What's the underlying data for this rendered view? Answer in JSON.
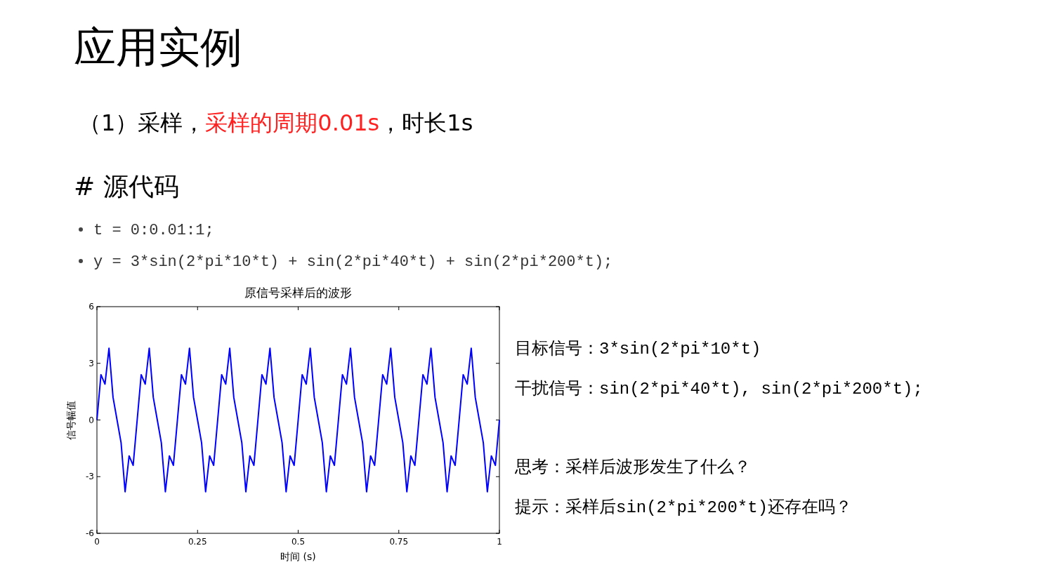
{
  "chart_data": {
    "type": "line",
    "title": "原信号采样后的波形",
    "xlabel": "时间 (s)",
    "ylabel": "信号幅值",
    "x": [
      0,
      0.01,
      0.02,
      0.03,
      0.04,
      0.05,
      0.06,
      0.07,
      0.08,
      0.09,
      0.1,
      0.11,
      0.12,
      0.13,
      0.14,
      0.15,
      0.16,
      0.17,
      0.18,
      0.19,
      0.2,
      0.21,
      0.22,
      0.23,
      0.24,
      0.25,
      0.26,
      0.27,
      0.28,
      0.29,
      0.3,
      0.31,
      0.32,
      0.33,
      0.34,
      0.35,
      0.36,
      0.37,
      0.38,
      0.39,
      0.4,
      0.41,
      0.42,
      0.43,
      0.44,
      0.45,
      0.46,
      0.47,
      0.48,
      0.49,
      0.5,
      0.51,
      0.52,
      0.53,
      0.54,
      0.55,
      0.56,
      0.57,
      0.58,
      0.59,
      0.6,
      0.61,
      0.62,
      0.63,
      0.64,
      0.65,
      0.66,
      0.67,
      0.68,
      0.69,
      0.7,
      0.71,
      0.72,
      0.73,
      0.74,
      0.75,
      0.76,
      0.77,
      0.78,
      0.79,
      0.8,
      0.81,
      0.82,
      0.83,
      0.84,
      0.85,
      0.86,
      0.87,
      0.88,
      0.89,
      0.9,
      0.91,
      0.92,
      0.93,
      0.94,
      0.95,
      0.96,
      0.97,
      0.98,
      0.99,
      1
    ],
    "series": [
      {
        "color": "#0000ff",
        "values": [
          0,
          2.4,
          1.9,
          3.8,
          1.2,
          0,
          -1.2,
          -3.8,
          -1.9,
          -2.4,
          0,
          2.4,
          1.9,
          3.8,
          1.2,
          0,
          -1.2,
          -3.8,
          -1.9,
          -2.4,
          0,
          2.4,
          1.9,
          3.8,
          1.2,
          0,
          -1.2,
          -3.8,
          -1.9,
          -2.4,
          0,
          2.4,
          1.9,
          3.8,
          1.2,
          0,
          -1.2,
          -3.8,
          -1.9,
          -2.4,
          0,
          2.4,
          1.9,
          3.8,
          1.2,
          0,
          -1.2,
          -3.8,
          -1.9,
          -2.4,
          0,
          2.4,
          1.9,
          3.8,
          1.2,
          0,
          -1.2,
          -3.8,
          -1.9,
          -2.4,
          0,
          2.4,
          1.9,
          3.8,
          1.2,
          0,
          -1.2,
          -3.8,
          -1.9,
          -2.4,
          0,
          2.4,
          1.9,
          3.8,
          1.2,
          0,
          -1.2,
          -3.8,
          -1.9,
          -2.4,
          0,
          2.4,
          1.9,
          3.8,
          1.2,
          0,
          -1.2,
          -3.8,
          -1.9,
          -2.4,
          0,
          2.4,
          1.9,
          3.8,
          1.2,
          0,
          -1.2,
          -3.8,
          -1.9,
          -2.4,
          0
        ]
      }
    ],
    "xlim": [
      0,
      1
    ],
    "ylim": [
      -6,
      6
    ],
    "xticks": [
      0,
      0.25,
      0.5,
      0.75,
      1
    ],
    "yticks": [
      -6,
      -3,
      0,
      3,
      6
    ],
    "annotations": [
      "应用实例",
      "（1）采样，",
      "采样的周期0.01s",
      "，时长1s",
      "# 源代码",
      "t = 0:0.01:1;",
      "y = 3*sin(2*pi*10*t) + sin(2*pi*40*t) + sin(2*pi*200*t);",
      "目标信号：3*sin(2*pi*10*t)",
      "干扰信号：sin(2*pi*40*t), sin(2*pi*200*t);",
      "思考：采样后波形发生了什么？",
      "提示：采样后sin(2*pi*200*t)还存在吗？"
    ]
  }
}
